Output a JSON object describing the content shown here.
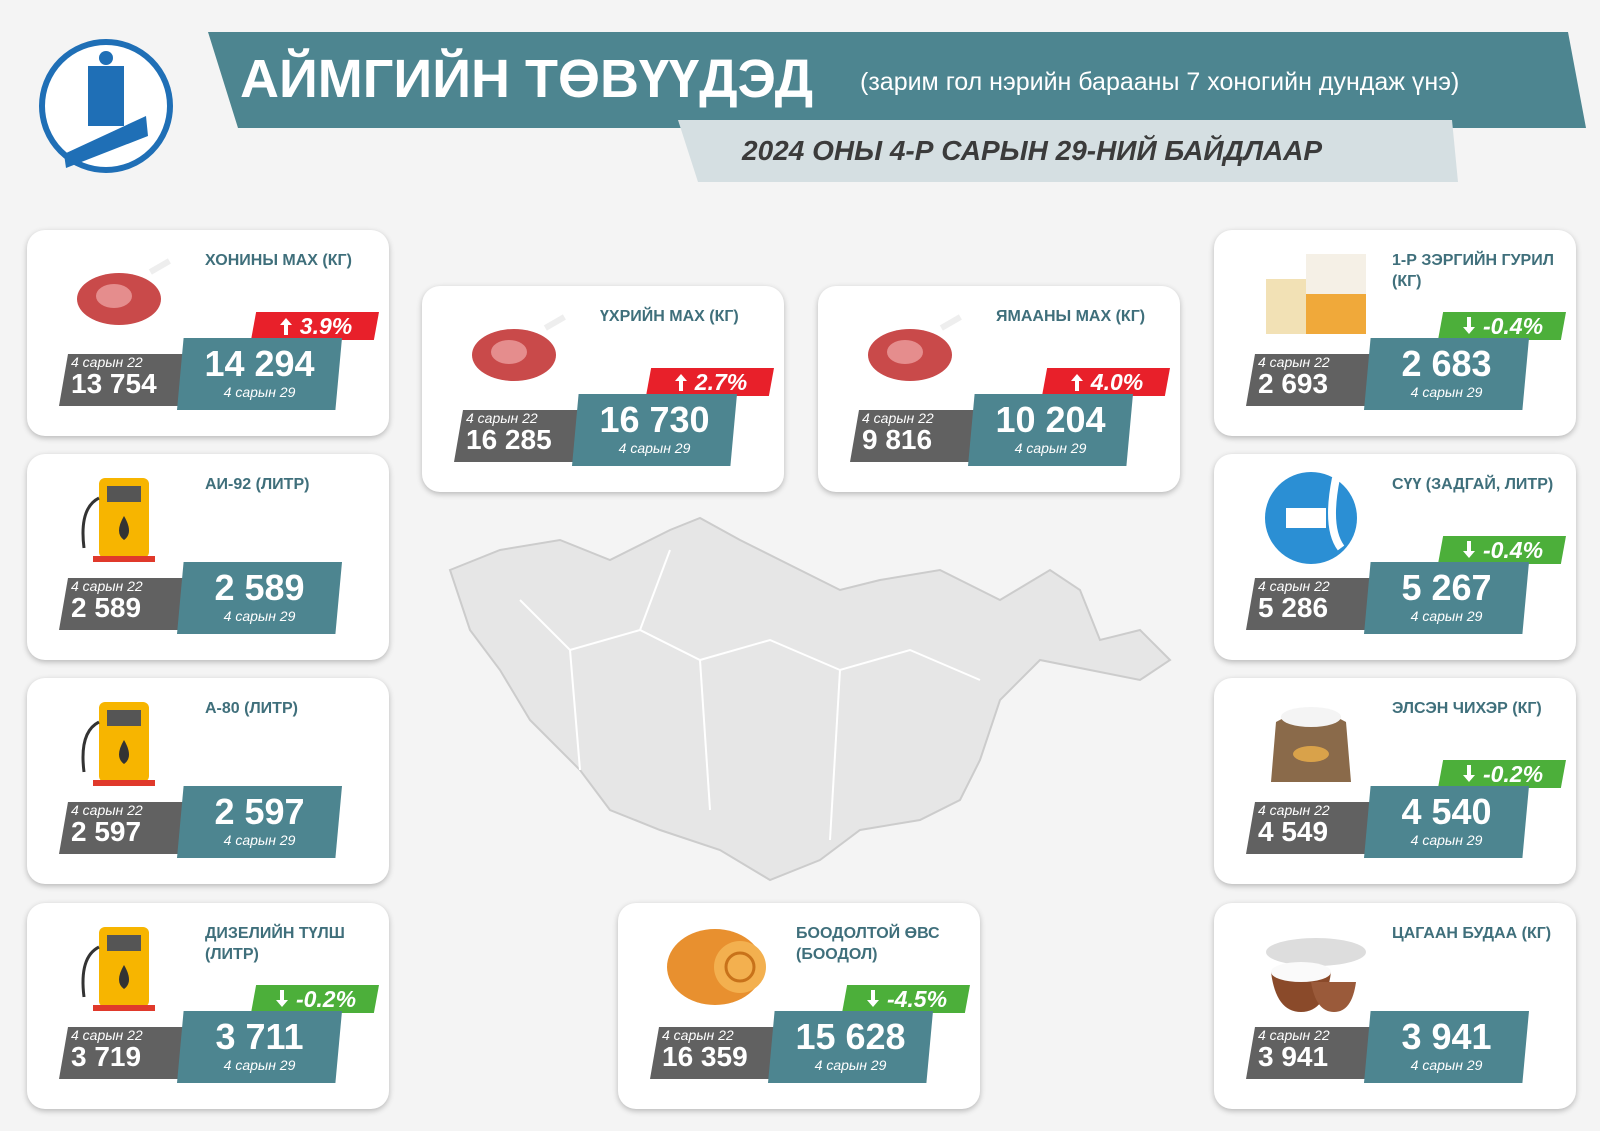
{
  "header": {
    "title": "АЙМГИЙН ТӨВҮҮДЭД",
    "subtitle": "(зарим гол нэрийн барааны 7 хоногийн дундаж үнэ)",
    "date": "2024 ОНЫ 4-Р САРЫН 29-НИЙ БАЙДЛААР"
  },
  "prev_label": "4 сарын 22",
  "current_label": "4 сарын 29",
  "cards": [
    {
      "title": "ХОНИНЫ МАХ (КГ)",
      "prev": "13 754",
      "current": "14 294",
      "change": "3.9%",
      "direction": "up"
    },
    {
      "title": "АИ-92 (ЛИТР)",
      "prev": "2 589",
      "current": "2 589"
    },
    {
      "title": "А-80 (ЛИТР)",
      "prev": "2 597",
      "current": "2 597"
    },
    {
      "title": "ДИЗЕЛИЙН ТҮЛШ (ЛИТР)",
      "prev": "3 719",
      "current": "3 711",
      "change": "-0.2%",
      "direction": "down"
    },
    {
      "title": "ҮХРИЙН МАХ (КГ)",
      "prev": "16 285",
      "current": "16 730",
      "change": "2.7%",
      "direction": "up"
    },
    {
      "title": "ЯМААНЫ МАХ (КГ)",
      "prev": "9 816",
      "current": "10 204",
      "change": "4.0%",
      "direction": "up"
    },
    {
      "title": "БООДОЛТОЙ ӨВС (БООДОЛ)",
      "prev": "16 359",
      "current": "15 628",
      "change": "-4.5%",
      "direction": "down"
    },
    {
      "title": "1-Р ЗЭРГИЙН ГУРИЛ (КГ)",
      "prev": "2 693",
      "current": "2 683",
      "change": "-0.4%",
      "direction": "down"
    },
    {
      "title": "СҮҮ (ЗАДГАЙ, ЛИТР)",
      "prev": "5 286",
      "current": "5 267",
      "change": "-0.4%",
      "direction": "down"
    },
    {
      "title": "ЭЛСЭН ЧИХЭР (КГ)",
      "prev": "4 549",
      "current": "4 540",
      "change": "-0.2%",
      "direction": "down"
    },
    {
      "title": "ЦАГААН БУДАА (КГ)",
      "prev": "3 941",
      "current": "3 941"
    }
  ]
}
